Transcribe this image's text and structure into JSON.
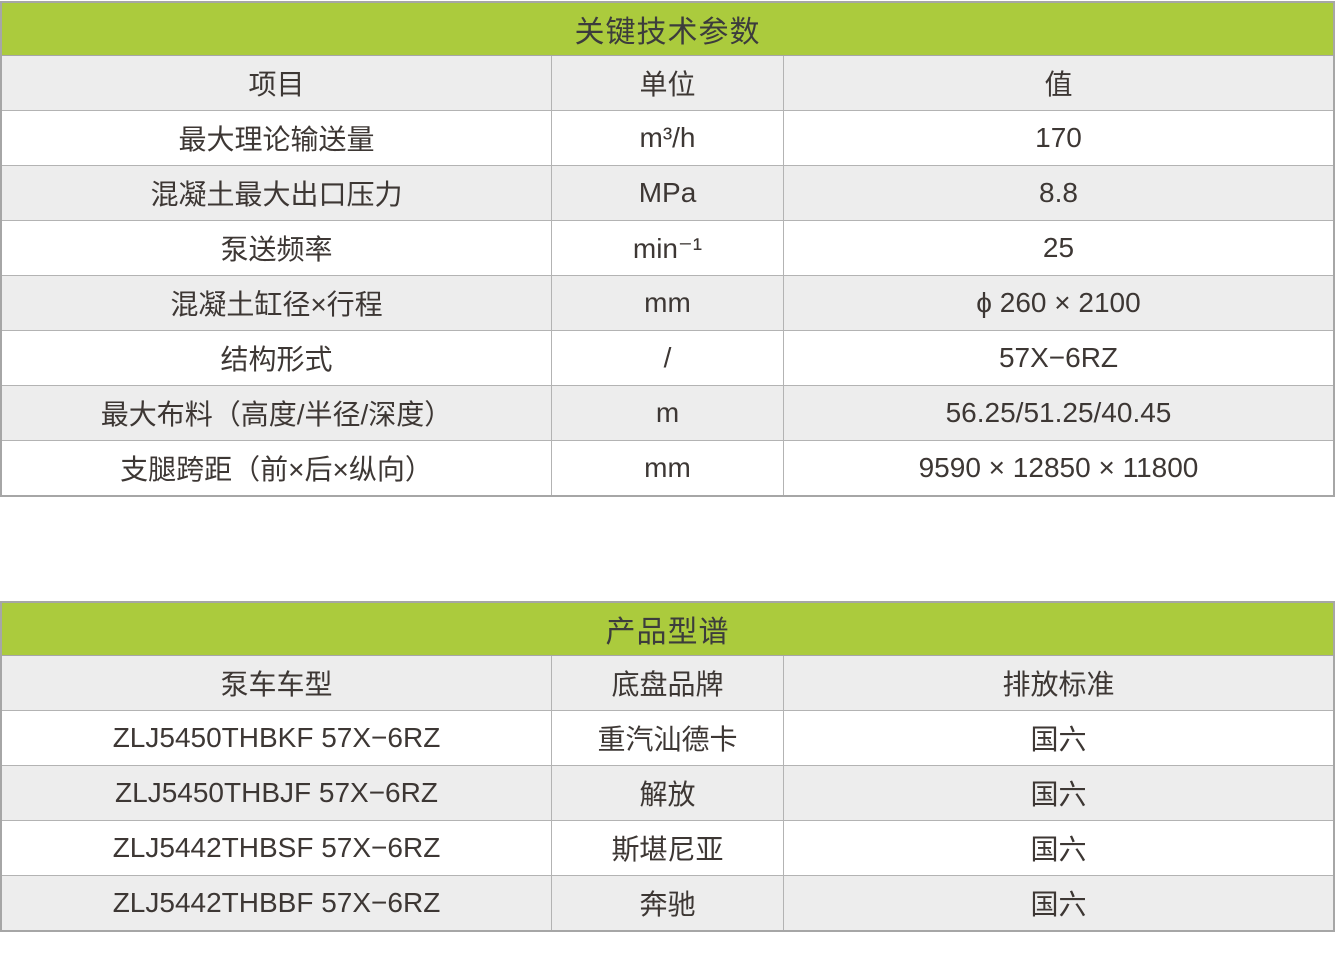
{
  "colors": {
    "title_green": "#abcb3d",
    "row_gray": "#ededed",
    "row_white": "#ffffff",
    "border_gray": "#a6a6a6",
    "text_dark": "#3d3734"
  },
  "tables": [
    {
      "title": "关键技术参数",
      "columns": [
        "项目",
        "单位",
        "值"
      ],
      "rows": [
        [
          "最大理论输送量",
          "m³/h",
          "170"
        ],
        [
          "混凝土最大出口压力",
          "MPa",
          "8.8"
        ],
        [
          "泵送频率",
          "min⁻¹",
          "25"
        ],
        [
          "混凝土缸径×行程",
          "mm",
          "ϕ 260 × 2100"
        ],
        [
          "结构形式",
          "/",
          "57X−6RZ"
        ],
        [
          "最大布料（高度/半径/深度）",
          "m",
          "56.25/51.25/40.45"
        ],
        [
          "支腿跨距（前×后×纵向）",
          "mm",
          "9590 × 12850 × 11800"
        ]
      ]
    },
    {
      "title": "产品型谱",
      "columns": [
        "泵车车型",
        "底盘品牌",
        "排放标准"
      ],
      "rows": [
        [
          "ZLJ5450THBKF 57X−6RZ",
          "重汽汕德卡",
          "国六"
        ],
        [
          "ZLJ5450THBJF 57X−6RZ",
          "解放",
          "国六"
        ],
        [
          "ZLJ5442THBSF 57X−6RZ",
          "斯堪尼亚",
          "国六"
        ],
        [
          "ZLJ5442THBBF 57X−6RZ",
          "奔驰",
          "国六"
        ]
      ]
    }
  ]
}
